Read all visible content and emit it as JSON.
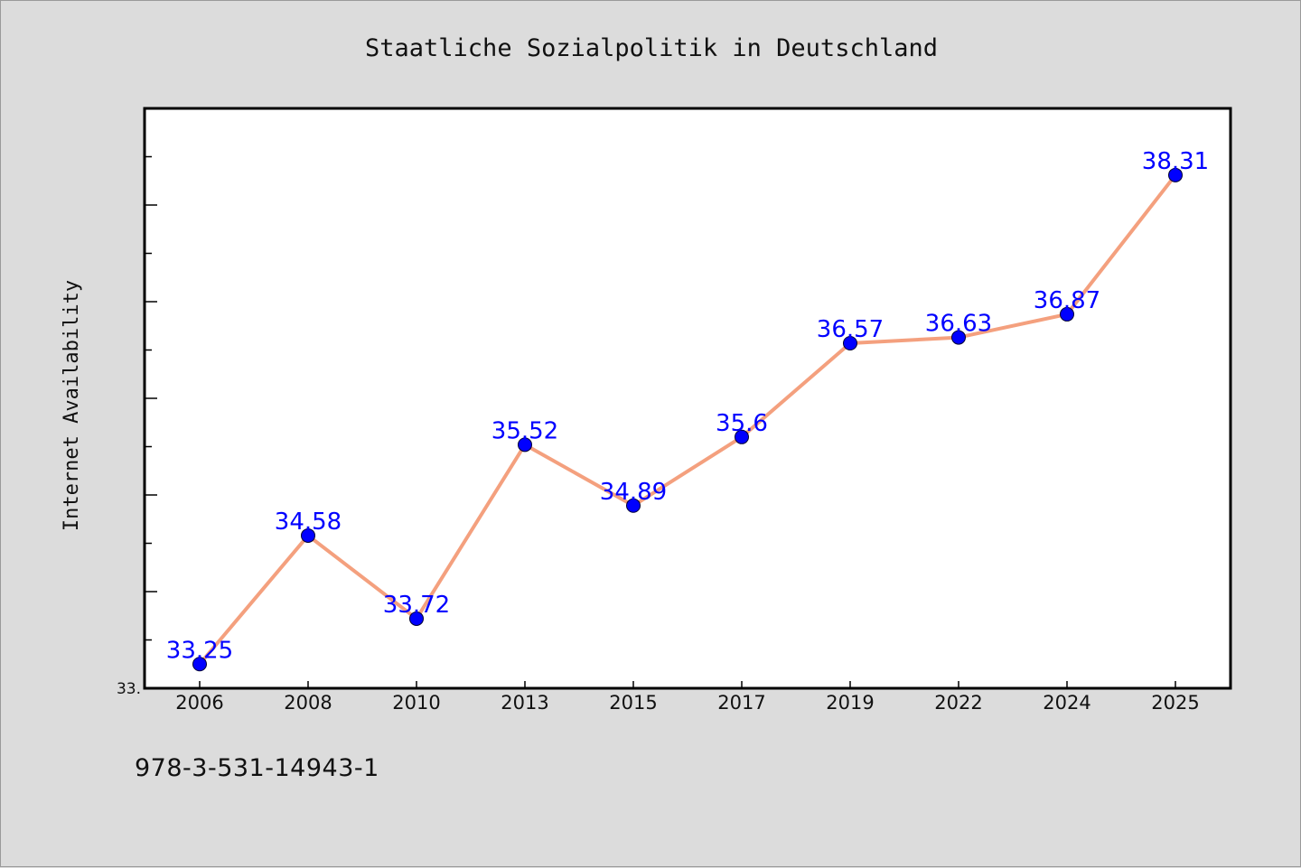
{
  "caption": "978-3-531-14943-1",
  "colors": {
    "background": "#dcdcdc",
    "plot_background": "#ffffff",
    "line": "#f4a07e",
    "marker": "#0000ff",
    "label": "#0000ff",
    "text": "#111111"
  },
  "chart_data": {
    "type": "line",
    "title": "Staatliche Sozialpolitik in Deutschland",
    "xlabel": "",
    "ylabel": "Internet Availability",
    "categories": [
      "2006",
      "2008",
      "2010",
      "2013",
      "2015",
      "2017",
      "2019",
      "2022",
      "2024",
      "2025"
    ],
    "values": [
      33.25,
      34.58,
      33.72,
      35.52,
      34.89,
      35.6,
      36.57,
      36.63,
      36.87,
      38.31
    ],
    "data_labels": [
      "33.25",
      "34.58",
      "33.72",
      "35.52",
      "34.89",
      "35.6",
      "36.57",
      "36.63",
      "36.87",
      "38.31"
    ],
    "ytick_labels": [
      "33."
    ],
    "ylim": [
      33.0,
      39.0
    ],
    "grid": false,
    "legend": "none"
  }
}
